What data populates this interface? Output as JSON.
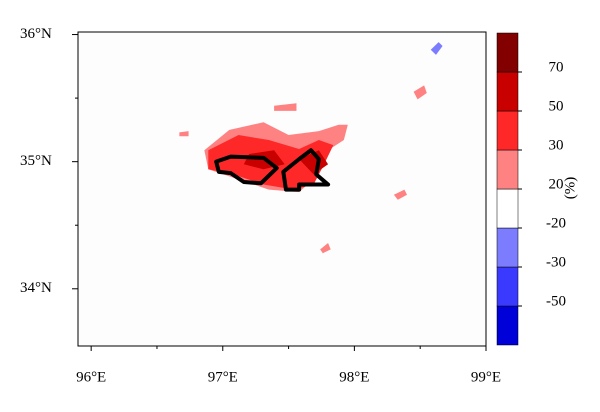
{
  "chart_data": {
    "type": "contour",
    "xlim": [
      95.9,
      99.0
    ],
    "ylim": [
      33.55,
      36.02
    ],
    "xticks": [
      {
        "value": 96,
        "label": "96°E"
      },
      {
        "value": 97,
        "label": "97°E"
      },
      {
        "value": 98,
        "label": "98°E"
      },
      {
        "value": 99,
        "label": "99°E"
      }
    ],
    "yticks": [
      {
        "value": 34,
        "label": "34°N"
      },
      {
        "value": 35,
        "label": "35°N"
      },
      {
        "value": 36,
        "label": "36°N"
      }
    ],
    "colorbar": {
      "label": "(%)",
      "levels": [
        -50,
        -30,
        -20,
        20,
        30,
        50,
        70
      ],
      "colors": [
        "#0000d8",
        "#3a3aff",
        "#7c7cff",
        "#ffffff",
        "#ff8282",
        "#ff2828",
        "#c80000",
        "#820000"
      ]
    },
    "regions": [
      {
        "level": 20,
        "lon": [
          96.86,
          97.05,
          97.31,
          97.5,
          97.73,
          97.88,
          97.95,
          97.92,
          97.8,
          97.73,
          97.58,
          97.35,
          97.12,
          96.89
        ],
        "lat": [
          35.09,
          35.25,
          35.31,
          35.21,
          35.24,
          35.29,
          35.29,
          35.17,
          35.09,
          34.9,
          34.76,
          34.78,
          34.86,
          34.94
        ]
      },
      {
        "level": 30,
        "lon": [
          96.89,
          97.12,
          97.35,
          97.58,
          97.73,
          97.84,
          97.77,
          97.69,
          97.54,
          97.31,
          97.08,
          96.89
        ],
        "lat": [
          35.09,
          35.21,
          35.17,
          35.1,
          35.17,
          35.13,
          34.98,
          34.82,
          34.78,
          34.82,
          34.9,
          34.94
        ]
      },
      {
        "level": 50,
        "lon": [
          97.2,
          97.39,
          97.47,
          97.31,
          97.16
        ],
        "lat": [
          35.06,
          35.09,
          34.98,
          34.94,
          34.98
        ]
      },
      {
        "level": 50,
        "lon": [
          97.58,
          97.73,
          97.8,
          97.69
        ],
        "lat": [
          35.02,
          35.09,
          34.98,
          34.9
        ]
      },
      {
        "level": 20,
        "lon": [
          97.39,
          97.56,
          97.56,
          97.39
        ],
        "lat": [
          35.44,
          35.46,
          35.4,
          35.4
        ]
      },
      {
        "level": 20,
        "lon": [
          98.45,
          98.53,
          98.55,
          98.48
        ],
        "lat": [
          35.55,
          35.6,
          35.54,
          35.49
        ]
      },
      {
        "level": 20,
        "lon": [
          98.3,
          98.38,
          98.4,
          98.33
        ],
        "lat": [
          34.74,
          34.78,
          34.74,
          34.7
        ]
      },
      {
        "level": 20,
        "lon": [
          97.74,
          97.8,
          97.82,
          97.76
        ],
        "lat": [
          34.31,
          34.36,
          34.31,
          34.28
        ]
      },
      {
        "level": 20,
        "lon": [
          96.67,
          96.74,
          96.74,
          96.67
        ],
        "lat": [
          35.23,
          35.24,
          35.2,
          35.2
        ]
      },
      {
        "level": -30,
        "lon": [
          98.58,
          98.64,
          98.67,
          98.62
        ],
        "lat": [
          35.88,
          35.94,
          35.91,
          35.84
        ]
      }
    ],
    "outlines": [
      {
        "lon": [
          96.95,
          97.06,
          97.31,
          97.41,
          97.29,
          97.16,
          97.06,
          96.97
        ],
        "lat": [
          35.0,
          35.04,
          35.03,
          34.95,
          34.83,
          34.84,
          34.91,
          34.92
        ]
      },
      {
        "lon": [
          97.46,
          97.58,
          97.67,
          97.73,
          97.71,
          97.8,
          97.58,
          97.58,
          97.48
        ],
        "lat": [
          34.92,
          35.02,
          35.09,
          35.02,
          34.9,
          34.82,
          34.82,
          34.78,
          34.78
        ]
      }
    ]
  }
}
